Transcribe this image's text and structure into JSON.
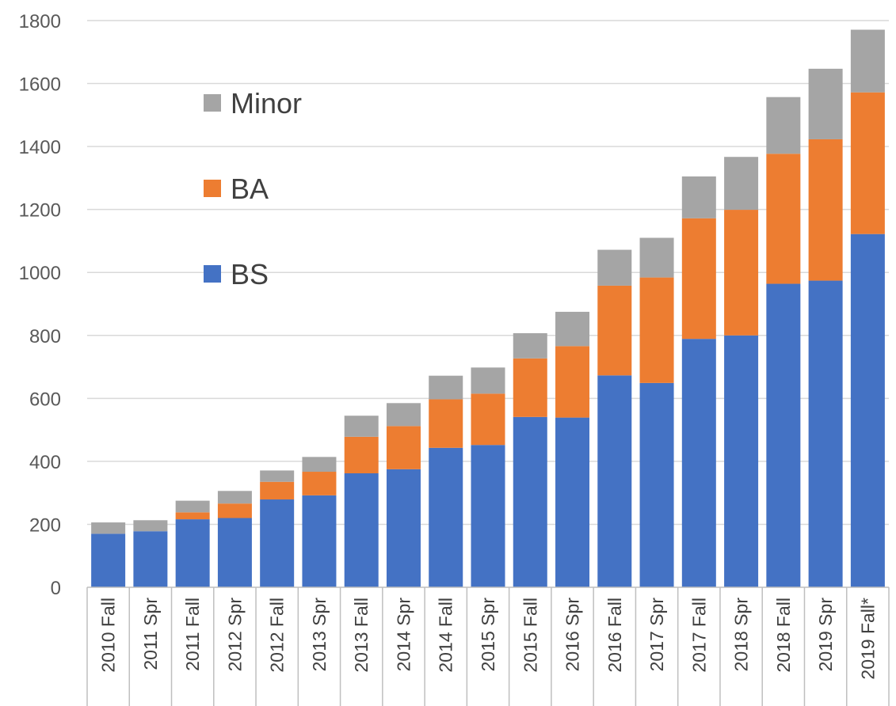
{
  "chart_data": {
    "type": "bar",
    "stacked": true,
    "categories": [
      "2010 Fall",
      "2011 Spr",
      "2011 Fall",
      "2012 Spr",
      "2012 Fall",
      "2013 Spr",
      "2013 Fall",
      "2014 Spr",
      "2014 Fall",
      "2015 Spr",
      "2015 Fall",
      "2016 Spr",
      "2016 Fall",
      "2017 Spr",
      "2017 Fall",
      "2018 Spr",
      "2018 Fall",
      "2019 Spr",
      "2019 Fall*"
    ],
    "series": [
      {
        "name": "BS",
        "color": "#4472C4",
        "values": [
          170,
          178,
          216,
          220,
          279,
          292,
          362,
          375,
          443,
          452,
          541,
          539,
          673,
          649,
          789,
          800,
          964,
          974,
          1122
        ]
      },
      {
        "name": "BA",
        "color": "#ED7D31",
        "values": [
          0,
          0,
          22,
          46,
          56,
          75,
          116,
          137,
          154,
          163,
          186,
          227,
          285,
          335,
          383,
          399,
          413,
          449,
          450
        ]
      },
      {
        "name": "Minor",
        "color": "#A5A5A5",
        "values": [
          36,
          35,
          37,
          40,
          36,
          47,
          67,
          73,
          75,
          83,
          80,
          109,
          114,
          126,
          133,
          168,
          180,
          224,
          199
        ]
      }
    ],
    "yticks": [
      "0",
      "200",
      "400",
      "600",
      "800",
      "1000",
      "1200",
      "1400",
      "1600",
      "1800"
    ],
    "ylim": [
      0,
      1800
    ],
    "grid": true,
    "legend": {
      "position": "upper-left-inside",
      "order": [
        "Minor",
        "BA",
        "BS"
      ]
    },
    "title": "",
    "xlabel": "",
    "ylabel": ""
  }
}
